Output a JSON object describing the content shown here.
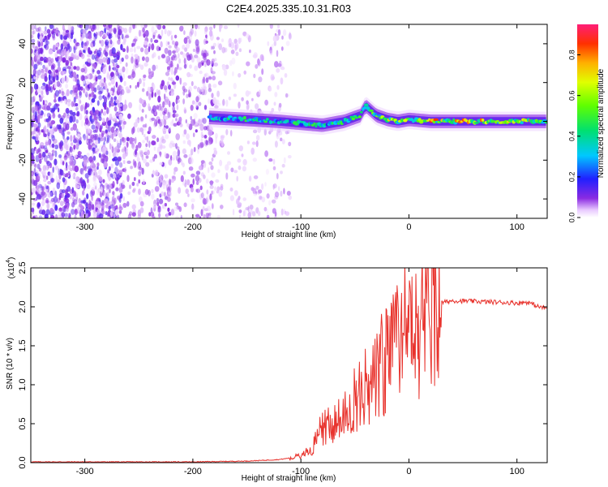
{
  "title": "C2E4.2025.335.10.31.R03",
  "chart_data": [
    {
      "type": "heatmap",
      "xlabel": "Height of straight line (km)",
      "ylabel": "Frequency (Hz)",
      "xlim": [
        -350,
        128
      ],
      "ylim": [
        -50,
        50
      ],
      "xticks": [
        -300,
        -200,
        -100,
        0,
        100
      ],
      "yticks": [
        -40,
        -20,
        0,
        20,
        40
      ],
      "colorbar": {
        "label": "Normalized spectral amplitude",
        "range": [
          0,
          0.95
        ],
        "ticks": [
          "0.0",
          "0.2",
          "0.4",
          "0.6",
          "0.8"
        ]
      },
      "description_regions": [
        {
          "x_range": [
            -350,
            -265
          ],
          "kind": "noise",
          "density": "high",
          "amplitude": [
            0.0,
            0.15
          ]
        },
        {
          "x_range": [
            -265,
            -180
          ],
          "kind": "noise",
          "density": "medium",
          "amplitude": [
            0.0,
            0.1
          ]
        },
        {
          "x_range": [
            -180,
            -110
          ],
          "kind": "noise",
          "density": "sparse",
          "amplitude": [
            0.0,
            0.05
          ]
        },
        {
          "x_range": [
            -185,
            128
          ],
          "kind": "signal-band",
          "center_freq": 0,
          "amplitude": [
            0.2,
            0.95
          ]
        }
      ],
      "signal_center": {
        "x": [
          -185,
          -150,
          -120,
          -100,
          -80,
          -60,
          -45,
          -40,
          -30,
          -20,
          -10,
          0,
          20,
          60,
          100,
          128
        ],
        "freq": [
          2,
          1,
          0,
          -1,
          -2,
          0,
          3,
          8,
          3,
          1,
          0,
          1,
          0,
          0,
          0,
          0
        ]
      },
      "signal_peak_amplitude": {
        "x": [
          -185,
          -150,
          -100,
          -60,
          -40,
          -20,
          0,
          20,
          60,
          100,
          115,
          128
        ],
        "amp": [
          0.45,
          0.5,
          0.5,
          0.55,
          0.6,
          0.75,
          0.85,
          0.9,
          0.85,
          0.7,
          0.92,
          0.6
        ]
      }
    },
    {
      "type": "line",
      "xlabel": "Height of straight line (km)",
      "ylabel": "SNR (10 * v/v)",
      "yscale_label": "(x10",
      "yscale_exp": "4",
      "yscale_close": ")",
      "xlim": [
        -350,
        128
      ],
      "ylim": [
        0,
        2.5
      ],
      "xticks": [
        -300,
        -200,
        -100,
        0,
        100
      ],
      "yticks": [
        "0.0",
        "0.5",
        "1.0",
        "1.5",
        "2.0",
        "2.5"
      ],
      "series": [
        {
          "color": "#e8322c",
          "x": [
            -350,
            -300,
            -250,
            -200,
            -150,
            -120,
            -100,
            -90,
            -80,
            -70,
            -60,
            -50,
            -40,
            -30,
            -20,
            -10,
            0,
            10,
            20,
            30,
            40,
            60,
            80,
            100,
            110,
            120,
            128
          ],
          "y": [
            0.01,
            0.01,
            0.01,
            0.01,
            0.02,
            0.04,
            0.08,
            0.2,
            0.45,
            0.5,
            0.6,
            0.8,
            1.0,
            1.2,
            1.3,
            1.5,
            1.8,
            1.7,
            1.9,
            2.05,
            2.08,
            2.07,
            2.06,
            2.05,
            2.06,
            2.0,
            1.98
          ]
        }
      ]
    }
  ]
}
